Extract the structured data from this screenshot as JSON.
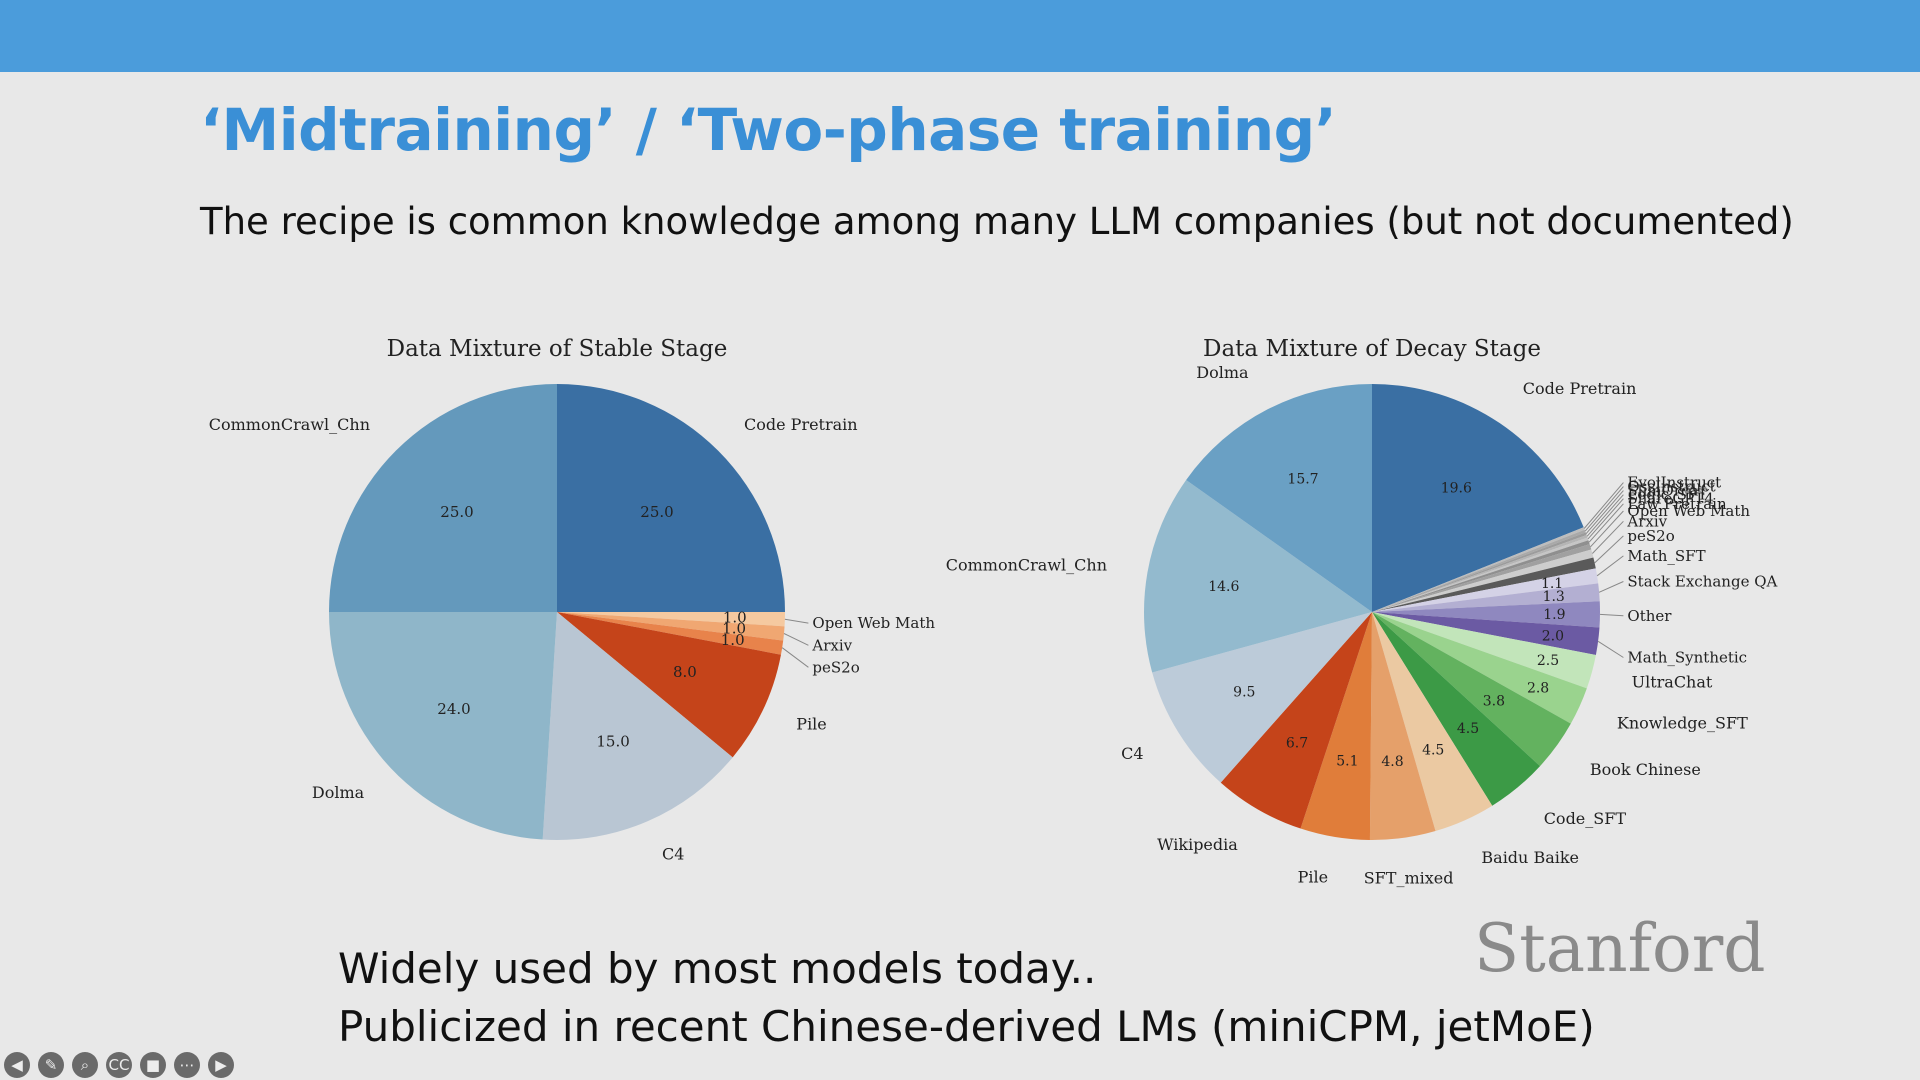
{
  "slide": {
    "title": "‘Midtraining’ / ‘Two-phase training’",
    "subtitle": "The recipe is common knowledge among many LLM companies (but not documented)",
    "bottom_lines": [
      "Widely used by most models today..",
      "Publicized in recent Chinese-derived LMs (miniCPM, jetMoE)"
    ],
    "logo": "Stanford"
  },
  "player_controls": [
    {
      "name": "prev-icon",
      "glyph": "◀"
    },
    {
      "name": "pen-icon",
      "glyph": "✎"
    },
    {
      "name": "search-icon",
      "glyph": "⌕"
    },
    {
      "name": "captions-icon",
      "glyph": "CC"
    },
    {
      "name": "camera-icon",
      "glyph": "■"
    },
    {
      "name": "more-icon",
      "glyph": "⋯"
    },
    {
      "name": "next-icon",
      "glyph": "▶"
    }
  ],
  "chart_data": [
    {
      "type": "pie",
      "title": "Data Mixture of Stable Stage",
      "start": "12 o'clock",
      "direction": "clockwise",
      "slices": [
        {
          "label": "Code Pretrain",
          "value": 25.0,
          "value_label": "25.0",
          "color": "#3a6fa3"
        },
        {
          "label": "Open Web Math",
          "value": 1.0,
          "value_label": "1.0",
          "color": "#f5c9a0"
        },
        {
          "label": "Arxiv",
          "value": 1.0,
          "value_label": "1.0",
          "color": "#f0a772"
        },
        {
          "label": "peS2o",
          "value": 1.0,
          "value_label": "1.0",
          "color": "#e8834b"
        },
        {
          "label": "Pile",
          "value": 8.0,
          "value_label": "8.0",
          "color": "#c5441a"
        },
        {
          "label": "C4",
          "value": 15.0,
          "value_label": "15.0",
          "color": "#b9c6d3"
        },
        {
          "label": "Dolma",
          "value": 24.0,
          "value_label": "24.0",
          "color": "#8fb6c9"
        },
        {
          "label": "CommonCrawl_Chn",
          "value": 25.0,
          "value_label": "25.0",
          "color": "#6499bc"
        }
      ]
    },
    {
      "type": "pie",
      "title": "Data Mixture of Decay Stage",
      "start": "12 o'clock",
      "direction": "clockwise",
      "slices": [
        {
          "label": "Code Pretrain",
          "value": 19.6,
          "value_label": "19.6",
          "color": "#3a6fa3"
        },
        {
          "label": "EvolInstruct",
          "value": 0.2,
          "value_label": "",
          "color": "#bdbdbd"
        },
        {
          "label": "OssInstruct",
          "value": 0.2,
          "value_label": "",
          "color": "#a9a9a9"
        },
        {
          "label": "SlimOrca",
          "value": 0.2,
          "value_label": "",
          "color": "#9c9c9c"
        },
        {
          "label": "Logic_SFT",
          "value": 0.2,
          "value_label": "",
          "color": "#b5b5b5"
        },
        {
          "label": "ShareGPT4",
          "value": 0.2,
          "value_label": "",
          "color": "#c6c6c6"
        },
        {
          "label": "Law Pretrain",
          "value": 0.3,
          "value_label": "",
          "color": "#8f8f8f"
        },
        {
          "label": "Open Web Math",
          "value": 0.4,
          "value_label": "",
          "color": "#a0a0a0"
        },
        {
          "label": "Arxiv",
          "value": 0.6,
          "value_label": "",
          "color": "#cdcdcd"
        },
        {
          "label": "peS2o",
          "value": 0.8,
          "value_label": "",
          "color": "#5a5a5a"
        },
        {
          "label": "Math_SFT",
          "value": 1.1,
          "value_label": "1.1",
          "color": "#d4d2e6"
        },
        {
          "label": "Stack Exchange QA",
          "value": 1.3,
          "value_label": "1.3",
          "color": "#b3afd2"
        },
        {
          "label": "Other",
          "value": 1.9,
          "value_label": "1.9",
          "color": "#8f88bf"
        },
        {
          "label": "Math_Synthetic",
          "value": 2.0,
          "value_label": "2.0",
          "color": "#6b5aa3"
        },
        {
          "label": "UltraChat",
          "value": 2.5,
          "value_label": "2.5",
          "color": "#c2e5ba"
        },
        {
          "label": "Knowledge_SFT",
          "value": 2.8,
          "value_label": "2.8",
          "color": "#9ad38e"
        },
        {
          "label": "Book Chinese",
          "value": 3.8,
          "value_label": "3.8",
          "color": "#63b25f"
        },
        {
          "label": "Code_SFT",
          "value": 4.5,
          "value_label": "4.5",
          "color": "#3c9a46"
        },
        {
          "label": "Baidu Baike",
          "value": 4.5,
          "value_label": "4.5",
          "color": "#ebc9a2"
        },
        {
          "label": "SFT_mixed",
          "value": 4.8,
          "value_label": "4.8",
          "color": "#e5a06a"
        },
        {
          "label": "Pile",
          "value": 5.1,
          "value_label": "5.1",
          "color": "#e07d3a"
        },
        {
          "label": "Wikipedia",
          "value": 6.7,
          "value_label": "6.7",
          "color": "#c5441a"
        },
        {
          "label": "C4",
          "value": 9.5,
          "value_label": "9.5",
          "color": "#bccbd9"
        },
        {
          "label": "CommonCrawl_Chn",
          "value": 14.6,
          "value_label": "14.6",
          "color": "#93bace"
        },
        {
          "label": "Dolma",
          "value": 15.7,
          "value_label": "15.7",
          "color": "#6aa0c4"
        }
      ]
    }
  ]
}
